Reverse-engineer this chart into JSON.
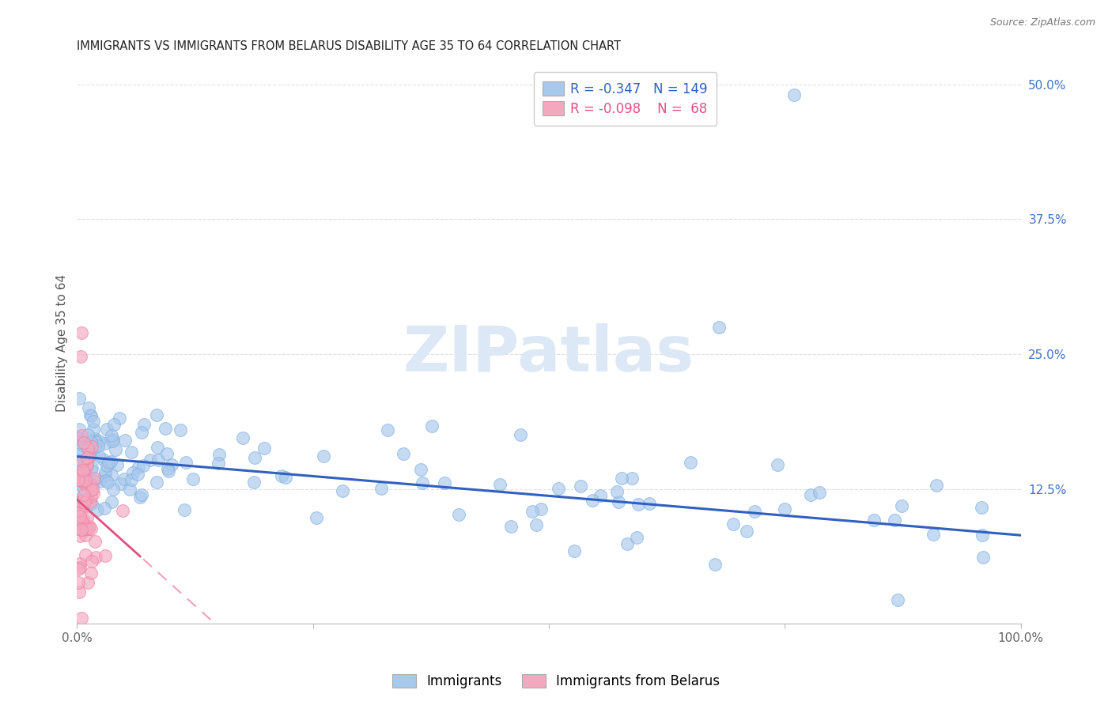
{
  "title": "IMMIGRANTS VS IMMIGRANTS FROM BELARUS DISABILITY AGE 35 TO 64 CORRELATION CHART",
  "source": "Source: ZipAtlas.com",
  "ylabel": "Disability Age 35 to 64",
  "xlim": [
    0.0,
    1.0
  ],
  "ylim": [
    0.0,
    0.52
  ],
  "blue_R": -0.347,
  "blue_N": 149,
  "pink_R": -0.098,
  "pink_N": 68,
  "blue_color": "#A8C8EC",
  "pink_color": "#F4A8C0",
  "blue_edge_color": "#7EB0E0",
  "pink_edge_color": "#F080A0",
  "blue_line_color": "#3060C0",
  "pink_line_color": "#E05080",
  "pink_dash_color": "#F0A0B8",
  "watermark_color": "#DCE8F5",
  "grid_color": "#E0E0E0",
  "background_color": "#FFFFFF",
  "legend_label_blue": "Immigrants",
  "legend_label_pink": "Immigrants from Belarus",
  "title_fontsize": 10.5,
  "axis_fontsize": 11,
  "ylabel_fontsize": 11
}
